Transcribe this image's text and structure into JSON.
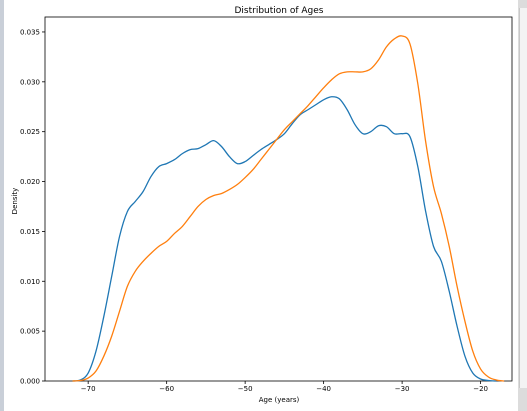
{
  "chart_data": {
    "type": "line",
    "title": "Distribution of Ages",
    "xlabel": "Age (years)",
    "ylabel": "Density",
    "xlim": [
      -75.5,
      -16
    ],
    "ylim": [
      0,
      0.0365
    ],
    "xticks": [
      -70,
      -60,
      -50,
      -40,
      -30,
      -20
    ],
    "xtick_labels": [
      "−70",
      "−60",
      "−50",
      "−40",
      "−30",
      "−20"
    ],
    "yticks": [
      0,
      0.005,
      0.01,
      0.015,
      0.02,
      0.025,
      0.03,
      0.035
    ],
    "ytick_labels": [
      "0.000",
      "0.005",
      "0.010",
      "0.015",
      "0.020",
      "0.025",
      "0.030",
      "0.035"
    ],
    "grid": false,
    "legend": false,
    "series": [
      {
        "color": "#1f77b4",
        "x": [
          -72,
          -71,
          -70,
          -69,
          -68,
          -67,
          -66,
          -65,
          -64,
          -63,
          -62,
          -61,
          -60,
          -59,
          -58,
          -57,
          -56,
          -55,
          -54,
          -53,
          -52,
          -51,
          -50,
          -49,
          -48,
          -47,
          -46,
          -45,
          -44,
          -43,
          -42,
          -41,
          -40,
          -39,
          -38,
          -37,
          -36,
          -35,
          -34,
          -33,
          -32,
          -31,
          -30,
          -29,
          -28,
          -27,
          -26,
          -25,
          -24,
          -23,
          -22,
          -21,
          -20,
          -19,
          -18
        ],
        "y": [
          0.0,
          0.0001,
          0.0008,
          0.003,
          0.0065,
          0.0105,
          0.0145,
          0.017,
          0.018,
          0.019,
          0.0205,
          0.0215,
          0.0218,
          0.0222,
          0.0228,
          0.0232,
          0.0233,
          0.0237,
          0.0241,
          0.0235,
          0.0225,
          0.0218,
          0.022,
          0.0226,
          0.0232,
          0.0237,
          0.0242,
          0.0248,
          0.0258,
          0.0267,
          0.0272,
          0.0277,
          0.0282,
          0.0285,
          0.0283,
          0.0272,
          0.0257,
          0.0248,
          0.025,
          0.0256,
          0.0255,
          0.0248,
          0.0248,
          0.0245,
          0.0215,
          0.017,
          0.0135,
          0.012,
          0.009,
          0.0055,
          0.0025,
          0.0008,
          0.0002,
          5e-05,
          0.0
        ]
      },
      {
        "color": "#ff7f0e",
        "x": [
          -72,
          -71,
          -70,
          -69,
          -68,
          -67,
          -66,
          -65,
          -64,
          -63,
          -62,
          -61,
          -60,
          -59,
          -58,
          -57,
          -56,
          -55,
          -54,
          -53,
          -52,
          -51,
          -50,
          -49,
          -48,
          -47,
          -46,
          -45,
          -44,
          -43,
          -42,
          -41,
          -40,
          -39,
          -38,
          -37,
          -36,
          -35,
          -34,
          -33,
          -32,
          -31,
          -30,
          -29,
          -28,
          -27,
          -26,
          -25,
          -24,
          -23,
          -22,
          -21,
          -20,
          -19,
          -18,
          -17
        ],
        "y": [
          0.0,
          5e-05,
          0.0003,
          0.001,
          0.0025,
          0.0045,
          0.007,
          0.0095,
          0.011,
          0.012,
          0.0128,
          0.0135,
          0.014,
          0.0148,
          0.0155,
          0.0165,
          0.0175,
          0.0182,
          0.0186,
          0.0188,
          0.0192,
          0.0197,
          0.0204,
          0.0212,
          0.0222,
          0.0232,
          0.0242,
          0.0252,
          0.026,
          0.0268,
          0.0276,
          0.0285,
          0.0294,
          0.0302,
          0.0308,
          0.031,
          0.031,
          0.031,
          0.0313,
          0.0322,
          0.0335,
          0.0343,
          0.0346,
          0.0338,
          0.0298,
          0.024,
          0.0195,
          0.0168,
          0.0135,
          0.0095,
          0.006,
          0.003,
          0.0012,
          0.0004,
          0.0001,
          0.0
        ]
      }
    ]
  }
}
